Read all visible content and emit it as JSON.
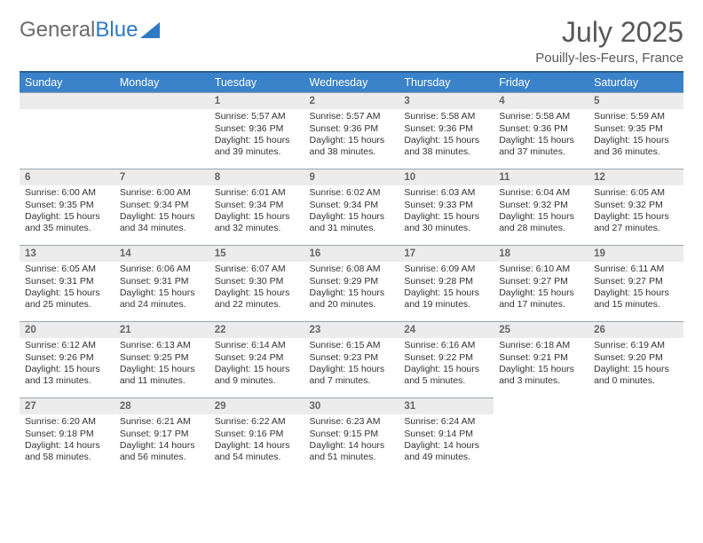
{
  "logo": {
    "text_a": "General",
    "text_b": "Blue"
  },
  "title": "July 2025",
  "location": "Pouilly-les-Feurs, France",
  "colors": {
    "header_bg": "#3a82c9",
    "header_border": "#2a5d94",
    "daynum_bg": "#ececec",
    "daynum_border": "#9aa5af",
    "text": "#333333",
    "title": "#585858"
  },
  "weekdays": [
    "Sunday",
    "Monday",
    "Tuesday",
    "Wednesday",
    "Thursday",
    "Friday",
    "Saturday"
  ],
  "weeks": [
    [
      null,
      null,
      {
        "n": "1",
        "sr": "Sunrise: 5:57 AM",
        "ss": "Sunset: 9:36 PM",
        "d1": "Daylight: 15 hours",
        "d2": "and 39 minutes."
      },
      {
        "n": "2",
        "sr": "Sunrise: 5:57 AM",
        "ss": "Sunset: 9:36 PM",
        "d1": "Daylight: 15 hours",
        "d2": "and 38 minutes."
      },
      {
        "n": "3",
        "sr": "Sunrise: 5:58 AM",
        "ss": "Sunset: 9:36 PM",
        "d1": "Daylight: 15 hours",
        "d2": "and 38 minutes."
      },
      {
        "n": "4",
        "sr": "Sunrise: 5:58 AM",
        "ss": "Sunset: 9:36 PM",
        "d1": "Daylight: 15 hours",
        "d2": "and 37 minutes."
      },
      {
        "n": "5",
        "sr": "Sunrise: 5:59 AM",
        "ss": "Sunset: 9:35 PM",
        "d1": "Daylight: 15 hours",
        "d2": "and 36 minutes."
      }
    ],
    [
      {
        "n": "6",
        "sr": "Sunrise: 6:00 AM",
        "ss": "Sunset: 9:35 PM",
        "d1": "Daylight: 15 hours",
        "d2": "and 35 minutes."
      },
      {
        "n": "7",
        "sr": "Sunrise: 6:00 AM",
        "ss": "Sunset: 9:34 PM",
        "d1": "Daylight: 15 hours",
        "d2": "and 34 minutes."
      },
      {
        "n": "8",
        "sr": "Sunrise: 6:01 AM",
        "ss": "Sunset: 9:34 PM",
        "d1": "Daylight: 15 hours",
        "d2": "and 32 minutes."
      },
      {
        "n": "9",
        "sr": "Sunrise: 6:02 AM",
        "ss": "Sunset: 9:34 PM",
        "d1": "Daylight: 15 hours",
        "d2": "and 31 minutes."
      },
      {
        "n": "10",
        "sr": "Sunrise: 6:03 AM",
        "ss": "Sunset: 9:33 PM",
        "d1": "Daylight: 15 hours",
        "d2": "and 30 minutes."
      },
      {
        "n": "11",
        "sr": "Sunrise: 6:04 AM",
        "ss": "Sunset: 9:32 PM",
        "d1": "Daylight: 15 hours",
        "d2": "and 28 minutes."
      },
      {
        "n": "12",
        "sr": "Sunrise: 6:05 AM",
        "ss": "Sunset: 9:32 PM",
        "d1": "Daylight: 15 hours",
        "d2": "and 27 minutes."
      }
    ],
    [
      {
        "n": "13",
        "sr": "Sunrise: 6:05 AM",
        "ss": "Sunset: 9:31 PM",
        "d1": "Daylight: 15 hours",
        "d2": "and 25 minutes."
      },
      {
        "n": "14",
        "sr": "Sunrise: 6:06 AM",
        "ss": "Sunset: 9:31 PM",
        "d1": "Daylight: 15 hours",
        "d2": "and 24 minutes."
      },
      {
        "n": "15",
        "sr": "Sunrise: 6:07 AM",
        "ss": "Sunset: 9:30 PM",
        "d1": "Daylight: 15 hours",
        "d2": "and 22 minutes."
      },
      {
        "n": "16",
        "sr": "Sunrise: 6:08 AM",
        "ss": "Sunset: 9:29 PM",
        "d1": "Daylight: 15 hours",
        "d2": "and 20 minutes."
      },
      {
        "n": "17",
        "sr": "Sunrise: 6:09 AM",
        "ss": "Sunset: 9:28 PM",
        "d1": "Daylight: 15 hours",
        "d2": "and 19 minutes."
      },
      {
        "n": "18",
        "sr": "Sunrise: 6:10 AM",
        "ss": "Sunset: 9:27 PM",
        "d1": "Daylight: 15 hours",
        "d2": "and 17 minutes."
      },
      {
        "n": "19",
        "sr": "Sunrise: 6:11 AM",
        "ss": "Sunset: 9:27 PM",
        "d1": "Daylight: 15 hours",
        "d2": "and 15 minutes."
      }
    ],
    [
      {
        "n": "20",
        "sr": "Sunrise: 6:12 AM",
        "ss": "Sunset: 9:26 PM",
        "d1": "Daylight: 15 hours",
        "d2": "and 13 minutes."
      },
      {
        "n": "21",
        "sr": "Sunrise: 6:13 AM",
        "ss": "Sunset: 9:25 PM",
        "d1": "Daylight: 15 hours",
        "d2": "and 11 minutes."
      },
      {
        "n": "22",
        "sr": "Sunrise: 6:14 AM",
        "ss": "Sunset: 9:24 PM",
        "d1": "Daylight: 15 hours",
        "d2": "and 9 minutes."
      },
      {
        "n": "23",
        "sr": "Sunrise: 6:15 AM",
        "ss": "Sunset: 9:23 PM",
        "d1": "Daylight: 15 hours",
        "d2": "and 7 minutes."
      },
      {
        "n": "24",
        "sr": "Sunrise: 6:16 AM",
        "ss": "Sunset: 9:22 PM",
        "d1": "Daylight: 15 hours",
        "d2": "and 5 minutes."
      },
      {
        "n": "25",
        "sr": "Sunrise: 6:18 AM",
        "ss": "Sunset: 9:21 PM",
        "d1": "Daylight: 15 hours",
        "d2": "and 3 minutes."
      },
      {
        "n": "26",
        "sr": "Sunrise: 6:19 AM",
        "ss": "Sunset: 9:20 PM",
        "d1": "Daylight: 15 hours",
        "d2": "and 0 minutes."
      }
    ],
    [
      {
        "n": "27",
        "sr": "Sunrise: 6:20 AM",
        "ss": "Sunset: 9:18 PM",
        "d1": "Daylight: 14 hours",
        "d2": "and 58 minutes."
      },
      {
        "n": "28",
        "sr": "Sunrise: 6:21 AM",
        "ss": "Sunset: 9:17 PM",
        "d1": "Daylight: 14 hours",
        "d2": "and 56 minutes."
      },
      {
        "n": "29",
        "sr": "Sunrise: 6:22 AM",
        "ss": "Sunset: 9:16 PM",
        "d1": "Daylight: 14 hours",
        "d2": "and 54 minutes."
      },
      {
        "n": "30",
        "sr": "Sunrise: 6:23 AM",
        "ss": "Sunset: 9:15 PM",
        "d1": "Daylight: 14 hours",
        "d2": "and 51 minutes."
      },
      {
        "n": "31",
        "sr": "Sunrise: 6:24 AM",
        "ss": "Sunset: 9:14 PM",
        "d1": "Daylight: 14 hours",
        "d2": "and 49 minutes."
      },
      null,
      null
    ]
  ]
}
